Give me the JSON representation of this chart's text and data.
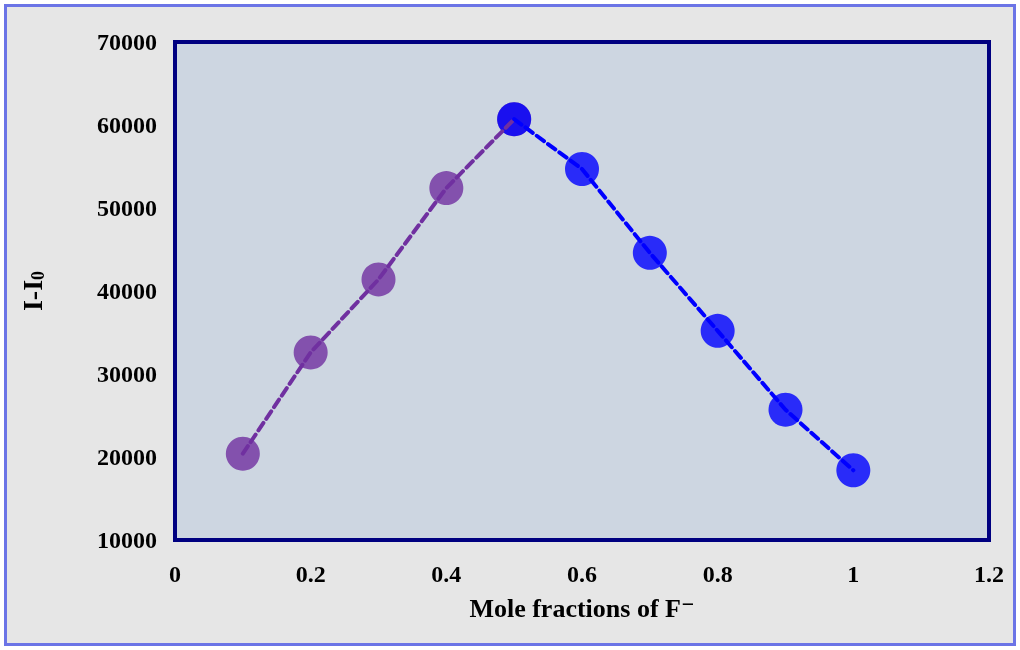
{
  "chart_data": {
    "type": "line",
    "xlabel": "Mole fractions of F⁻",
    "ylabel": "I-I$_{0}$",
    "xlim": [
      0,
      1.2
    ],
    "xticks": [
      0,
      0.2,
      0.4,
      0.6,
      0.8,
      1,
      1.2
    ],
    "ylim": [
      10000,
      70000
    ],
    "yticks": [
      10000,
      20000,
      30000,
      40000,
      50000,
      60000,
      70000
    ],
    "grid": false,
    "marker": "circle",
    "line_style": "dashed",
    "series": [
      {
        "color": "#7030a0",
        "x": [
          0.1,
          0.2,
          0.3,
          0.4,
          0.5
        ],
        "values": [
          20400,
          32600,
          41400,
          52400,
          60700
        ]
      },
      {
        "color": "#0000ff",
        "x": [
          0.5,
          0.6,
          0.7,
          0.8,
          0.9,
          1
        ],
        "values": [
          60700,
          54700,
          44600,
          35200,
          25700,
          18400
        ]
      }
    ]
  }
}
